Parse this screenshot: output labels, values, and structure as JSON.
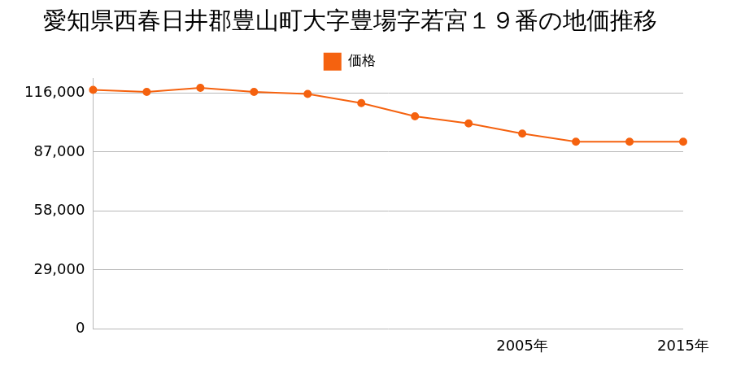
{
  "chart_data": {
    "type": "line",
    "title": "愛知県西春日井郡豊山町大字豊場字若宮１９番の地価推移",
    "categories": [
      null,
      null,
      null,
      null,
      null,
      null,
      null,
      null,
      "2005年",
      null,
      null,
      "2015年"
    ],
    "series": [
      {
        "name": "価格",
        "color": "#f5620f",
        "values": [
          117500,
          116500,
          118500,
          116500,
          115500,
          111000,
          104500,
          101000,
          96000,
          92000,
          92000,
          92000
        ]
      }
    ],
    "ylim": [
      0,
      123000
    ],
    "yticks": [
      0,
      {
        "value": 29000,
        "label": "29,000"
      },
      {
        "value": 58000,
        "label": "58,000"
      },
      {
        "value": 87000,
        "label": "87,000"
      },
      {
        "value": 116000,
        "label": "116,000"
      }
    ],
    "grid": true,
    "legend": "top",
    "marker": "circle",
    "line_style": "solid"
  }
}
